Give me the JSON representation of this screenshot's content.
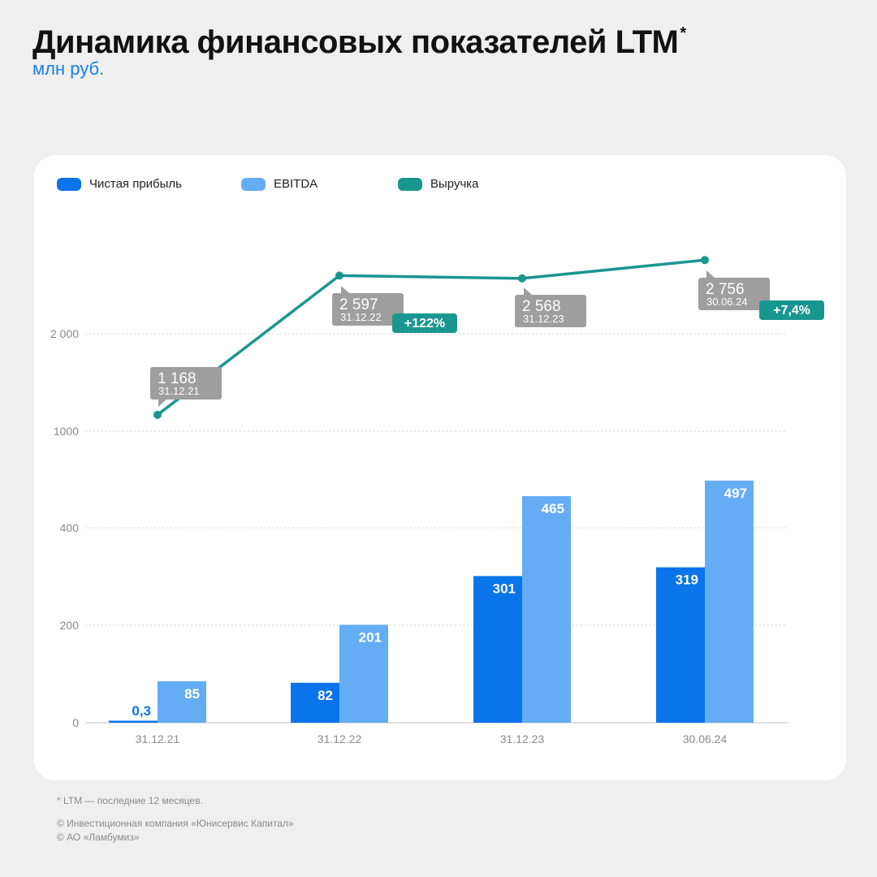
{
  "header": {
    "title": "Динамика финансовых показателей LTM",
    "title_mark": "*",
    "subtitle": "млн руб."
  },
  "legend": [
    {
      "label": "Чистая прибыль",
      "color": "#0a74ea"
    },
    {
      "label": "EBITDA",
      "color": "#64adf5"
    },
    {
      "label": "Выручка",
      "color": "#1a9690"
    }
  ],
  "chart_data": {
    "type": "bar",
    "categories": [
      "31.12.21",
      "31.12.22",
      "31.12.23",
      "30.06.24"
    ],
    "y_ticks_lower": [
      "0",
      "200",
      "400"
    ],
    "y_ticks_upper": [
      "1000",
      "2 000"
    ],
    "series": [
      {
        "name": "Чистая прибыль",
        "type": "bar",
        "values": [
          0.3,
          82,
          301,
          319
        ],
        "labels": [
          "0,3",
          "82",
          "301",
          "319"
        ],
        "color": "#0a74ea"
      },
      {
        "name": "EBITDA",
        "type": "bar",
        "values": [
          85,
          201,
          465,
          497
        ],
        "labels": [
          "85",
          "201",
          "465",
          "497"
        ],
        "color": "#64adf5"
      },
      {
        "name": "Выручка",
        "type": "line",
        "values": [
          1168,
          2597,
          2568,
          2756
        ],
        "labels": [
          "1 168",
          "2 597",
          "2 568",
          "2 756"
        ],
        "color": "#1a9690"
      }
    ],
    "callouts": [
      {
        "value": "1 168",
        "date": "31.12.21",
        "badge": ""
      },
      {
        "value": "2 597",
        "date": "31.12.22",
        "badge": "+122%"
      },
      {
        "value": "2 568",
        "date": "31.12.23",
        "badge": ""
      },
      {
        "value": "2 756",
        "date": "30.06.24",
        "badge": "+7,4%"
      }
    ],
    "grid": true,
    "legend_position": "top-left"
  },
  "footer": {
    "note": "* LTM — последние 12 месяцев.",
    "copyrights": [
      "© Инвестиционная компания «Юнисервис Капитал»",
      "© АО «Ламбумиз»"
    ]
  }
}
